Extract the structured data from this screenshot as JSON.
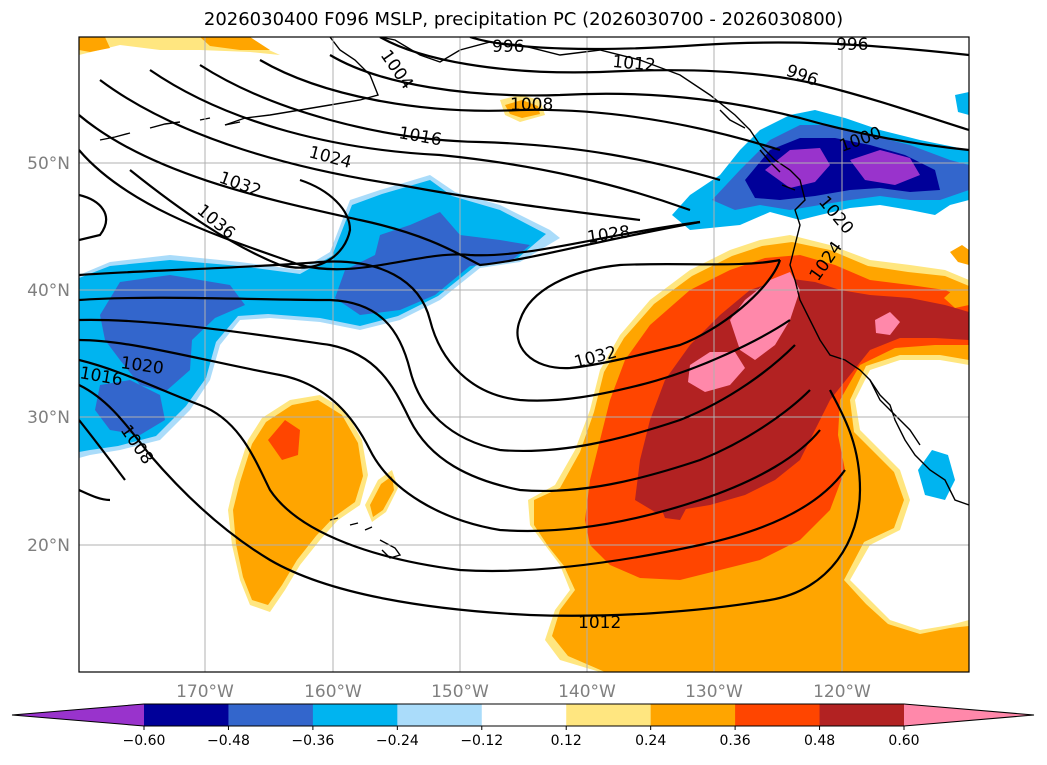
{
  "title": "2026030400 F096 MSLP, precipitation PC (2026030700 - 2026030800)",
  "lat_labels": [
    "50°N",
    "40°N",
    "30°N",
    "20°N"
  ],
  "lon_labels": [
    "170°W",
    "160°W",
    "150°W",
    "140°W",
    "130°W",
    "120°W"
  ],
  "isobar_labels": [
    "996",
    "996",
    "996",
    "1008",
    "1016",
    "1024",
    "1032",
    "1036",
    "1028",
    "1032",
    "1024",
    "1020",
    "1020",
    "1016",
    "1008",
    "1012",
    "1012",
    "1004",
    "1000"
  ],
  "colorbar": {
    "tick_labels": [
      "−0.60",
      "−0.48",
      "−0.36",
      "−0.24",
      "−0.12",
      "0.12",
      "0.24",
      "0.36",
      "0.48",
      "0.60"
    ],
    "colors": [
      "#9933cc",
      "#000099",
      "#3366cc",
      "#00b4f0",
      "#aadcfa",
      "#ffffff",
      "#ffe680",
      "#ffa500",
      "#ff4500",
      "#b22222",
      "#ff88aa",
      "#ff88aa"
    ]
  },
  "colors": {
    "purple": "#9933cc",
    "navy": "#000099",
    "blue": "#3366cc",
    "cyan": "#00b4f0",
    "lightblue": "#aadcfa",
    "yellow": "#ffe680",
    "orange": "#ffa500",
    "redorange": "#ff4500",
    "darkred": "#b22222",
    "pink": "#ff88aa"
  }
}
